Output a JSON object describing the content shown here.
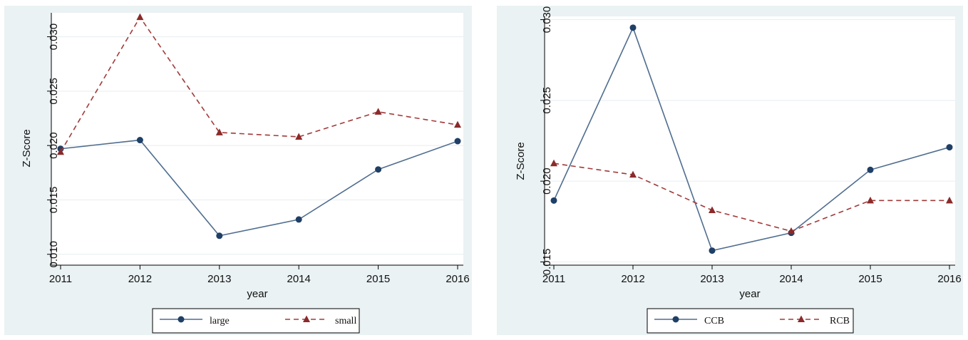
{
  "chart_data": [
    {
      "type": "line",
      "xlabel": "year",
      "ylabel": "Z-Score",
      "x": [
        2011,
        2012,
        2013,
        2014,
        2015,
        2016
      ],
      "xlim": [
        2011,
        2016
      ],
      "ylim": [
        0.009,
        0.0322
      ],
      "yticks": [
        "0.010",
        "0.015",
        "0.020",
        "0.025",
        "0.030"
      ],
      "grid": true,
      "legend_position": "bottom",
      "series": [
        {
          "name": "large",
          "values": [
            0.0197,
            0.0205,
            0.0117,
            0.0132,
            0.0178,
            0.0204
          ],
          "color": "#4f6d8f",
          "style": "solid",
          "marker": "circle"
        },
        {
          "name": "small",
          "values": [
            0.0194,
            0.0318,
            0.0212,
            0.0208,
            0.0231,
            0.0219
          ],
          "color": "#a03a3a",
          "style": "dashed",
          "marker": "triangle"
        }
      ]
    },
    {
      "type": "line",
      "xlabel": "year",
      "ylabel": "Z-Score",
      "x": [
        2011,
        2012,
        2013,
        2014,
        2015,
        2016
      ],
      "xlim": [
        2011,
        2016
      ],
      "ylim": [
        0.0148,
        0.0302
      ],
      "yticks": [
        "0.015",
        "0.020",
        "0.025",
        "0.030"
      ],
      "grid": true,
      "legend_position": "bottom",
      "series": [
        {
          "name": "CCB",
          "values": [
            0.0188,
            0.0295,
            0.0157,
            0.0168,
            0.0207,
            0.0221
          ],
          "color": "#4f6d8f",
          "style": "solid",
          "marker": "circle"
        },
        {
          "name": "RCB",
          "values": [
            0.0211,
            0.0204,
            0.0182,
            0.0169,
            0.0188,
            0.0188
          ],
          "color": "#a03a3a",
          "style": "dashed",
          "marker": "triangle"
        }
      ]
    }
  ]
}
